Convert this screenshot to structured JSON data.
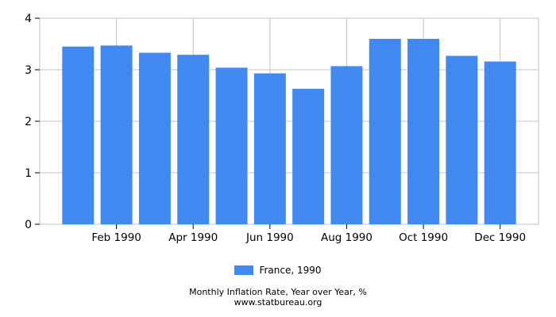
{
  "chart_data": {
    "type": "bar",
    "title": "Monthly Inflation Rate, Year over Year, %",
    "subtitle": "www.statbureau.org",
    "categories": [
      "Jan 1990",
      "Feb 1990",
      "Mar 1990",
      "Apr 1990",
      "May 1990",
      "Jun 1990",
      "Jul 1990",
      "Aug 1990",
      "Sep 1990",
      "Oct 1990",
      "Nov 1990",
      "Dec 1990"
    ],
    "x_tick_labels": [
      "Feb 1990",
      "Apr 1990",
      "Jun 1990",
      "Aug 1990",
      "Oct 1990",
      "Dec 1990"
    ],
    "series": [
      {
        "name": "France, 1990",
        "values": [
          3.45,
          3.47,
          3.33,
          3.29,
          3.04,
          2.93,
          2.63,
          3.07,
          3.6,
          3.6,
          3.27,
          3.16
        ]
      }
    ],
    "xlabel": "",
    "ylabel": "",
    "ylim": [
      0,
      4
    ],
    "yticks": [
      0,
      1,
      2,
      3,
      4
    ],
    "grid": true,
    "legend_position": "bottom"
  },
  "legend": {
    "label": "France, 1990",
    "swatch_color": "#4189F0"
  },
  "footer": {
    "line1": "Monthly Inflation Rate, Year over Year, %",
    "line2": "www.statbureau.org"
  },
  "colors": {
    "bar": "#4189F0",
    "grid": "#c3c3c3",
    "tick": "#000000",
    "text": "#000000",
    "background": "#ffffff"
  }
}
